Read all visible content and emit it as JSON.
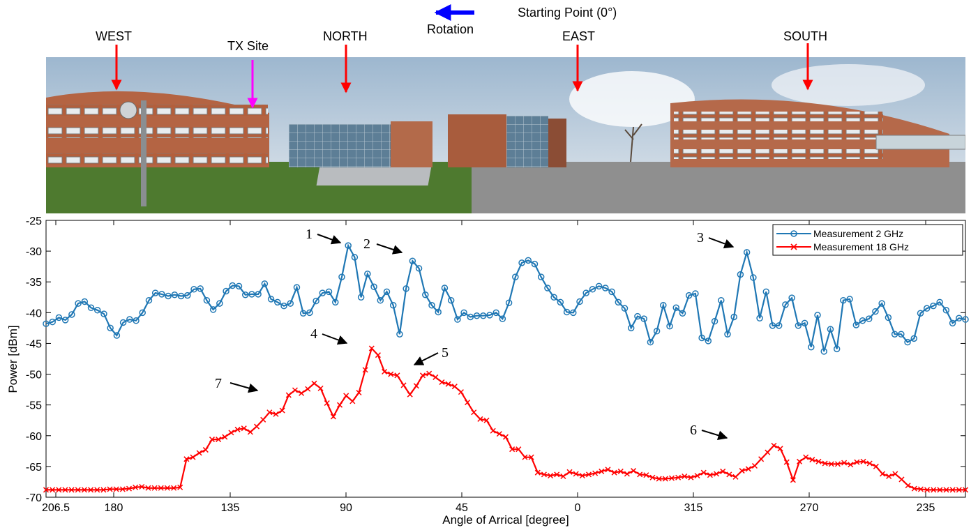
{
  "header": {
    "starting_point": "Starting Point (0°)",
    "rotation": "Rotation",
    "directions": [
      "WEST",
      "TX Site",
      "NORTH",
      "EAST",
      "SOUTH"
    ]
  },
  "colors": {
    "series_2ghz": "#1f77b4",
    "series_18ghz": "#ff0000",
    "rotation_arrow": "#0000ff",
    "direction_arrow": "#ff0000",
    "tx_arrow": "#ff00ff"
  },
  "chart_data": {
    "type": "line",
    "title": "",
    "xlabel": "Angle of Arrical [degree]",
    "ylabel": "Power [dBm]",
    "ylim": [
      -70,
      -25
    ],
    "yticks": [
      -25,
      -30,
      -35,
      -40,
      -45,
      -50,
      -55,
      -60,
      -65,
      -70
    ],
    "xticks": [
      "206.5",
      "180",
      "135",
      "90",
      "45",
      "0",
      "315",
      "270",
      "235"
    ],
    "legend": "top-right",
    "grid": false,
    "series": [
      {
        "name": "Measurement 2 GHz",
        "marker": "circle",
        "values": [
          -41.8,
          -41.5,
          -40.8,
          -41.2,
          -40.3,
          -38.5,
          -38.2,
          -39.2,
          -39.6,
          -40.2,
          -42.5,
          -43.7,
          -41.6,
          -41.1,
          -41.3,
          -40.0,
          -38.0,
          -36.8,
          -37.0,
          -37.3,
          -37.1,
          -37.3,
          -37.2,
          -36.2,
          -36.1,
          -38.0,
          -39.5,
          -38.5,
          -36.5,
          -35.6,
          -35.7,
          -37.1,
          -37.0,
          -37.0,
          -35.3,
          -37.8,
          -38.3,
          -38.9,
          -38.5,
          -35.9,
          -40.1,
          -40.0,
          -38.1,
          -36.8,
          -36.6,
          -38.3,
          -34.2,
          -29.1,
          -31.0,
          -37.5,
          -33.7,
          -35.8,
          -38.0,
          -36.6,
          -38.8,
          -43.5,
          -36.1,
          -31.6,
          -32.8,
          -37.1,
          -38.8,
          -39.9,
          -36.0,
          -38.0,
          -41.1,
          -40.0,
          -40.7,
          -40.5,
          -40.5,
          -40.4,
          -40.0,
          -41.0,
          -38.4,
          -34.2,
          -31.9,
          -31.5,
          -32.1,
          -34.2,
          -36.0,
          -37.5,
          -38.3,
          -39.9,
          -40.0,
          -38.2,
          -36.8,
          -36.2,
          -35.7,
          -36.0,
          -36.6,
          -38.3,
          -39.3,
          -42.5,
          -40.6,
          -41.0,
          -44.8,
          -43.0,
          -38.8,
          -42.2,
          -39.2,
          -40.1,
          -37.2,
          -36.9,
          -44.1,
          -44.6,
          -41.4,
          -38.0,
          -43.5,
          -40.7,
          -33.8,
          -30.2,
          -34.3,
          -40.9,
          -36.6,
          -42.1,
          -42.1,
          -38.7,
          -37.6,
          -42.1,
          -41.7,
          -45.6,
          -40.4,
          -46.3,
          -42.7,
          -45.9,
          -38.0,
          -37.8,
          -42.0,
          -41.3,
          -41.0,
          -39.8,
          -38.5,
          -40.8,
          -43.5,
          -43.5,
          -44.8,
          -44.2,
          -40.1,
          -39.3,
          -38.9,
          -38.3,
          -39.6,
          -41.7,
          -40.9,
          -41.1
        ]
      },
      {
        "name": "Measurement 18 GHz",
        "marker": "x",
        "values": [
          -68.8,
          -68.8,
          -68.8,
          -68.8,
          -68.8,
          -68.8,
          -68.8,
          -68.8,
          -68.8,
          -68.8,
          -68.7,
          -68.7,
          -68.7,
          -68.6,
          -68.4,
          -68.3,
          -68.5,
          -68.5,
          -68.5,
          -68.5,
          -68.5,
          -68.4,
          -63.8,
          -63.5,
          -62.8,
          -62.3,
          -60.6,
          -60.6,
          -60.2,
          -59.5,
          -59.0,
          -58.8,
          -59.4,
          -58.5,
          -57.4,
          -56.2,
          -56.5,
          -55.9,
          -53.4,
          -52.6,
          -53.1,
          -52.4,
          -51.5,
          -52.3,
          -54.7,
          -56.9,
          -55.0,
          -53.5,
          -54.4,
          -53.0,
          -49.3,
          -45.8,
          -46.9,
          -49.6,
          -50.0,
          -50.2,
          -51.8,
          -53.3,
          -51.9,
          -50.2,
          -49.9,
          -50.5,
          -51.3,
          -51.6,
          -52.0,
          -52.9,
          -54.6,
          -56.2,
          -57.3,
          -57.5,
          -59.2,
          -59.7,
          -60.2,
          -62.2,
          -62.2,
          -63.5,
          -63.5,
          -66.0,
          -66.3,
          -66.5,
          -66.3,
          -66.6,
          -65.9,
          -66.2,
          -66.5,
          -66.3,
          -66.1,
          -65.8,
          -65.5,
          -66.0,
          -65.8,
          -66.2,
          -65.7,
          -66.3,
          -66.4,
          -66.8,
          -67.0,
          -67.0,
          -66.9,
          -66.8,
          -66.6,
          -66.8,
          -66.5,
          -66.0,
          -66.4,
          -66.2,
          -65.8,
          -66.3,
          -66.7,
          -65.7,
          -65.4,
          -64.9,
          -63.8,
          -62.7,
          -61.6,
          -62.1,
          -64.3,
          -67.2,
          -64.2,
          -63.5,
          -63.9,
          -64.2,
          -64.5,
          -64.6,
          -64.6,
          -64.4,
          -64.7,
          -64.3,
          -64.2,
          -64.5,
          -65.0,
          -66.2,
          -66.6,
          -66.2,
          -67.1,
          -68.1,
          -68.6,
          -68.7,
          -68.8,
          -68.8,
          -68.8,
          -68.8,
          -68.8,
          -68.8,
          -68.8
        ]
      }
    ],
    "annotations": [
      "1",
      "2",
      "3",
      "4",
      "5",
      "6",
      "7"
    ]
  }
}
